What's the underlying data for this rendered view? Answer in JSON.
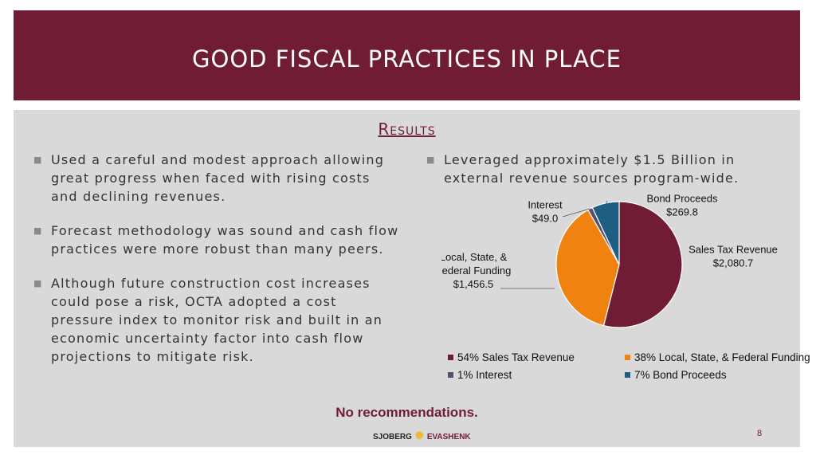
{
  "header": {
    "title": "GOOD FISCAL PRACTICES IN PLACE"
  },
  "section": {
    "title": "Results"
  },
  "left_bullets": [
    "Used a careful and modest approach allowing great progress when faced with rising costs and declining revenues.",
    "Forecast methodology was sound and cash flow practices were more robust than many peers.",
    "Although future construction cost increases could pose a risk, OCTA adopted a cost pressure index to monitor risk and built in an economic uncertainty factor into cash flow projections to mitigate risk."
  ],
  "right_bullet": "Leveraged approximately $1.5 Billion in external revenue sources program-wide.",
  "chart_data": {
    "type": "pie",
    "series": [
      {
        "name": "Sales Tax Revenue",
        "value": 2080.7,
        "value_label": "$2,080.7",
        "percent": 54,
        "legend": "54% Sales Tax Revenue",
        "color": "#701c35"
      },
      {
        "name": "Local, State, & Federal Funding",
        "value": 1456.5,
        "value_label": "$1,456.5",
        "percent": 38,
        "legend": "38% Local, State, & Federal Funding",
        "color": "#f0820f"
      },
      {
        "name": "Interest",
        "value": 49.0,
        "value_label": "$49.0",
        "percent": 1,
        "legend": "1% Interest",
        "color": "#5a4d6e"
      },
      {
        "name": "Bond Proceeds",
        "value": 269.8,
        "value_label": "$269.8",
        "percent": 7,
        "legend": "7% Bond Proceeds",
        "color": "#1d5e82"
      }
    ],
    "legend_position": "bottom"
  },
  "note": "No recommendations.",
  "footer": {
    "logo_left": "SJOBERG",
    "logo_right": "EVASHENK",
    "page": "8"
  },
  "colors": {
    "accent": "#701c35",
    "panel": "#d9d9d9"
  }
}
